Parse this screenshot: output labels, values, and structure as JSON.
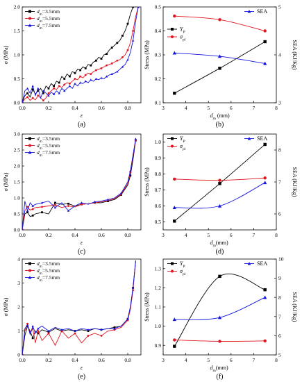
{
  "chart_data": [
    {
      "type": "line",
      "caption": "(a)",
      "xlabel": "ε",
      "ylabel": "σ (MPa)",
      "xlim": [
        0,
        0.9
      ],
      "ylim": [
        0,
        2.0
      ],
      "xticks": [
        0,
        0.2,
        0.4,
        0.6,
        0.8
      ],
      "xtick_labels": [
        "0.0",
        "0.2",
        "0.4",
        "0.6",
        "0.8"
      ],
      "yticks": [
        0,
        0.5,
        1.0,
        1.5,
        2.0
      ],
      "ytick_labels": [
        "0.0",
        "0.5",
        "1.0",
        "1.5",
        "2.0"
      ],
      "legend_position": "top-left",
      "series": [
        {
          "name": "dm=3.5mm",
          "label_main": "d",
          "label_sub": "m",
          "label_rest": "=3.5mm",
          "color": "#000000",
          "marker": "square",
          "x": [
            0,
            0.02,
            0.04,
            0.06,
            0.08,
            0.1,
            0.12,
            0.14,
            0.16,
            0.18,
            0.2,
            0.22,
            0.24,
            0.26,
            0.28,
            0.3,
            0.32,
            0.34,
            0.36,
            0.38,
            0.4,
            0.42,
            0.44,
            0.46,
            0.48,
            0.5,
            0.52,
            0.54,
            0.56,
            0.58,
            0.6,
            0.62,
            0.64,
            0.66,
            0.68,
            0.7,
            0.72,
            0.74,
            0.76,
            0.78,
            0.8,
            0.82,
            0.84,
            0.86
          ],
          "y": [
            0,
            0.15,
            0.2,
            0.12,
            0.28,
            0.18,
            0.25,
            0.3,
            0.2,
            0.35,
            0.3,
            0.4,
            0.35,
            0.45,
            0.42,
            0.55,
            0.5,
            0.6,
            0.55,
            0.65,
            0.62,
            0.7,
            0.68,
            0.75,
            0.72,
            0.8,
            0.78,
            0.85,
            0.88,
            0.95,
            0.92,
            1.0,
            1.02,
            1.1,
            1.15,
            1.2,
            1.25,
            1.3,
            1.4,
            1.5,
            1.65,
            1.85,
            2.0,
            2.0
          ]
        },
        {
          "name": "dm=5.5mm",
          "label_main": "d",
          "label_sub": "m",
          "label_rest": "=5.5mm",
          "color": "#e0141e",
          "marker": "circle",
          "x": [
            0,
            0.02,
            0.04,
            0.06,
            0.08,
            0.1,
            0.12,
            0.14,
            0.16,
            0.18,
            0.2,
            0.22,
            0.24,
            0.26,
            0.28,
            0.3,
            0.32,
            0.34,
            0.36,
            0.38,
            0.4,
            0.42,
            0.44,
            0.46,
            0.48,
            0.5,
            0.52,
            0.54,
            0.56,
            0.58,
            0.6,
            0.62,
            0.64,
            0.66,
            0.68,
            0.7,
            0.72,
            0.74,
            0.76,
            0.78,
            0.8,
            0.82,
            0.84,
            0.86,
            0.88
          ],
          "y": [
            0,
            0.08,
            0.12,
            0.05,
            0.1,
            0.06,
            0.15,
            0.1,
            0.05,
            0.1,
            0.2,
            0.25,
            0.3,
            0.28,
            0.35,
            0.32,
            0.38,
            0.42,
            0.4,
            0.45,
            0.5,
            0.48,
            0.55,
            0.52,
            0.58,
            0.62,
            0.6,
            0.65,
            0.68,
            0.7,
            0.72,
            0.75,
            0.78,
            0.8,
            0.82,
            0.85,
            0.88,
            0.9,
            0.95,
            1.0,
            1.1,
            1.25,
            1.5,
            1.8,
            2.0
          ]
        },
        {
          "name": "dm=7.5mm",
          "label_main": "d",
          "label_sub": "m",
          "label_rest": "=7.5mm",
          "color": "#1414e0",
          "marker": "triangle",
          "x": [
            0,
            0.02,
            0.04,
            0.06,
            0.08,
            0.1,
            0.12,
            0.14,
            0.16,
            0.18,
            0.2,
            0.22,
            0.24,
            0.26,
            0.28,
            0.3,
            0.32,
            0.34,
            0.36,
            0.38,
            0.4,
            0.42,
            0.44,
            0.46,
            0.48,
            0.5,
            0.52,
            0.54,
            0.56,
            0.58,
            0.6,
            0.62,
            0.64,
            0.66,
            0.68,
            0.7,
            0.72,
            0.74,
            0.76,
            0.78,
            0.8,
            0.82,
            0.84,
            0.86,
            0.88
          ],
          "y": [
            0,
            0.25,
            0.3,
            0.2,
            0.35,
            0.15,
            0.3,
            0.1,
            0.25,
            0.2,
            0.15,
            0.22,
            0.18,
            0.25,
            0.2,
            0.3,
            0.25,
            0.3,
            0.35,
            0.3,
            0.4,
            0.35,
            0.42,
            0.4,
            0.45,
            0.42,
            0.48,
            0.45,
            0.5,
            0.48,
            0.52,
            0.5,
            0.55,
            0.58,
            0.6,
            0.62,
            0.65,
            0.7,
            0.75,
            0.8,
            0.9,
            1.05,
            1.3,
            1.7,
            2.0
          ]
        }
      ]
    },
    {
      "type": "line",
      "caption": "(b)",
      "xlabel_main": "d",
      "xlabel_sub": "m",
      "xlabel_rest": " (mm)",
      "ylabel": "Stress (MPa)",
      "y2label": "SEA (KJ/Kg)",
      "xlim": [
        3,
        8
      ],
      "ylim": [
        0.1,
        0.5
      ],
      "y2lim": [
        3,
        5
      ],
      "xticks": [
        3,
        4,
        5,
        6,
        7,
        8
      ],
      "yticks": [
        0.1,
        0.2,
        0.3,
        0.4,
        0.5
      ],
      "ytick_labels": [
        "0.1",
        "0.2",
        "0.3",
        "0.4",
        "0.5"
      ],
      "y2ticks": [
        3,
        4,
        5
      ],
      "legend_position": "left",
      "legend2_position": "top-right",
      "series": [
        {
          "name": "YP",
          "label_main": "Y",
          "label_sub": "P",
          "color": "#000000",
          "marker": "square",
          "axis": "left",
          "x": [
            3.5,
            5.5,
            7.5
          ],
          "y": [
            0.14,
            0.244,
            0.355
          ]
        },
        {
          "name": "σpl",
          "label_main": "σ",
          "label_sub": "pl",
          "color": "#e0141e",
          "marker": "circle",
          "axis": "left",
          "x": [
            3.5,
            5.5,
            7.5
          ],
          "y": [
            0.462,
            0.447,
            0.4
          ]
        },
        {
          "name": "SEA",
          "label_main": "SEA",
          "label_sub": "",
          "color": "#1414e0",
          "marker": "triangle",
          "axis": "right",
          "x": [
            3.5,
            5.5,
            7.5
          ],
          "y": [
            4.04,
            3.97,
            3.82
          ]
        }
      ]
    },
    {
      "type": "line",
      "caption": "(c)",
      "xlabel": "ε",
      "ylabel": "σ (MPa)",
      "xlim": [
        0,
        0.9
      ],
      "ylim": [
        0,
        3.0
      ],
      "xticks": [
        0,
        0.2,
        0.4,
        0.6,
        0.8
      ],
      "xtick_labels": [
        "0.0",
        "0.2",
        "0.4",
        "0.6",
        "0.8"
      ],
      "yticks": [
        0,
        0.5,
        1.0,
        1.5,
        2.0,
        2.5,
        3.0
      ],
      "ytick_labels": [
        "0.0",
        "0.5",
        "1.0",
        "1.5",
        "2.0",
        "2.5",
        "3.0"
      ],
      "legend_position": "top-left",
      "series": [
        {
          "name": "dm=3.5mm",
          "label_main": "d",
          "label_sub": "m",
          "label_rest": "=3.5mm",
          "color": "#000000",
          "marker": "square",
          "x": [
            0,
            0.02,
            0.04,
            0.06,
            0.08,
            0.1,
            0.15,
            0.2,
            0.25,
            0.3,
            0.35,
            0.4,
            0.45,
            0.5,
            0.55,
            0.6,
            0.65,
            0.7,
            0.75,
            0.8,
            0.82,
            0.84,
            0.86
          ],
          "y": [
            0,
            0.5,
            0.55,
            0.42,
            0.45,
            0.5,
            0.55,
            0.5,
            0.85,
            0.8,
            0.82,
            0.75,
            0.8,
            0.82,
            0.85,
            0.85,
            0.9,
            0.95,
            1.1,
            1.4,
            1.7,
            2.2,
            2.8
          ]
        },
        {
          "name": "dm=5.5mm",
          "label_main": "d",
          "label_sub": "m",
          "label_rest": "=5.5mm",
          "color": "#e0141e",
          "marker": "circle",
          "x": [
            0,
            0.02,
            0.04,
            0.06,
            0.08,
            0.1,
            0.15,
            0.2,
            0.25,
            0.3,
            0.35,
            0.4,
            0.45,
            0.5,
            0.55,
            0.6,
            0.65,
            0.7,
            0.75,
            0.8,
            0.82,
            0.84,
            0.86
          ],
          "y": [
            0,
            0.6,
            0.72,
            0.62,
            0.65,
            0.7,
            0.72,
            0.75,
            0.78,
            0.7,
            0.75,
            0.72,
            0.8,
            0.82,
            0.85,
            0.88,
            0.92,
            0.98,
            1.12,
            1.45,
            1.8,
            2.3,
            2.8
          ]
        },
        {
          "name": "dm=7.5mm",
          "label_main": "d",
          "label_sub": "m",
          "label_rest": "=7.5mm",
          "color": "#1414e0",
          "marker": "triangle",
          "x": [
            0,
            0.02,
            0.04,
            0.06,
            0.08,
            0.1,
            0.15,
            0.2,
            0.25,
            0.3,
            0.35,
            0.4,
            0.45,
            0.5,
            0.55,
            0.6,
            0.65,
            0.7,
            0.75,
            0.8,
            0.82,
            0.84,
            0.86
          ],
          "y": [
            0,
            0.9,
            0.6,
            0.85,
            0.75,
            0.8,
            0.85,
            0.9,
            0.7,
            0.85,
            0.6,
            0.75,
            0.85,
            0.8,
            0.88,
            0.9,
            0.95,
            1.0,
            1.15,
            1.5,
            1.85,
            2.35,
            2.85
          ]
        }
      ]
    },
    {
      "type": "line",
      "caption": "(d)",
      "xlabel_main": "d",
      "xlabel_sub": "m",
      "xlabel_rest": "(mm)",
      "ylabel": "Stress (MPa)",
      "y2label": "SEA (KJ/Kg)",
      "xlim": [
        3,
        8
      ],
      "ylim": [
        0.45,
        1.05
      ],
      "y2lim": [
        5.5,
        8.5
      ],
      "xticks": [
        3,
        4,
        5,
        6,
        7,
        8
      ],
      "yticks": [
        0.5,
        0.6,
        0.7,
        0.8,
        0.9,
        1.0
      ],
      "ytick_labels": [
        "0.5",
        "0.6",
        "0.7",
        "0.8",
        "0.9",
        "1.0"
      ],
      "y2ticks": [
        6,
        7,
        8
      ],
      "legend_position": "top-left",
      "legend2_position": "top-right",
      "series": [
        {
          "name": "YP",
          "label_main": "Y",
          "label_sub": "P",
          "color": "#000000",
          "marker": "square",
          "axis": "left",
          "x": [
            3.5,
            5.5,
            7.5
          ],
          "y": [
            0.505,
            0.74,
            0.985
          ]
        },
        {
          "name": "σpl",
          "label_main": "σ",
          "label_sub": "pl",
          "color": "#e0141e",
          "marker": "circle",
          "axis": "left",
          "x": [
            3.5,
            5.5,
            7.5
          ],
          "y": [
            0.768,
            0.76,
            0.775
          ]
        },
        {
          "name": "SEA",
          "label_main": "SEA",
          "label_sub": "",
          "color": "#1414e0",
          "marker": "triangle",
          "axis": "right",
          "x": [
            3.5,
            5.5,
            7.5
          ],
          "y": [
            6.2,
            6.25,
            6.98
          ]
        }
      ]
    },
    {
      "type": "line",
      "caption": "(e)",
      "xlabel": "ε",
      "ylabel": "σ (MPa)",
      "xlim": [
        0,
        0.9
      ],
      "ylim": [
        0,
        4
      ],
      "xticks": [
        0,
        0.2,
        0.4,
        0.6,
        0.8
      ],
      "xtick_labels": [
        "0.0",
        "0.2",
        "0.4",
        "0.6",
        "0.8"
      ],
      "yticks": [
        0,
        1,
        2,
        3,
        4
      ],
      "ytick_labels": [
        "0",
        "1",
        "2",
        "3",
        "4"
      ],
      "legend_position": "top-left",
      "series": [
        {
          "name": "dm=3.5mm",
          "label_main": "d",
          "label_sub": "m",
          "label_rest": "=3.5mm",
          "color": "#000000",
          "marker": "square",
          "x": [
            0,
            0.02,
            0.04,
            0.06,
            0.08,
            0.1,
            0.12,
            0.15,
            0.2,
            0.25,
            0.3,
            0.35,
            0.4,
            0.45,
            0.5,
            0.55,
            0.6,
            0.65,
            0.7,
            0.75,
            0.8,
            0.82,
            0.84,
            0.86
          ],
          "y": [
            0,
            0.8,
            1.2,
            1.0,
            0.7,
            1.0,
            0.9,
            1.05,
            0.95,
            1.1,
            1.0,
            1.05,
            1.0,
            1.05,
            1.0,
            1.1,
            1.05,
            1.1,
            1.15,
            1.2,
            1.5,
            2.0,
            2.8,
            3.9
          ]
        },
        {
          "name": "dm=5.5mm",
          "label_main": "d",
          "label_sub": "m",
          "label_rest": "=5.5mm",
          "color": "#e0141e",
          "marker": "circle",
          "x": [
            0,
            0.02,
            0.04,
            0.06,
            0.08,
            0.1,
            0.12,
            0.15,
            0.2,
            0.25,
            0.3,
            0.35,
            0.4,
            0.45,
            0.5,
            0.55,
            0.6,
            0.65,
            0.7,
            0.75,
            0.8,
            0.82,
            0.84,
            0.86
          ],
          "y": [
            0,
            1.0,
            1.3,
            0.9,
            1.1,
            0.5,
            1.0,
            0.6,
            0.9,
            0.4,
            1.0,
            0.7,
            0.9,
            0.5,
            0.8,
            0.9,
            0.8,
            1.0,
            1.05,
            1.15,
            1.45,
            1.9,
            2.7,
            3.9
          ]
        },
        {
          "name": "dm=7.5mm",
          "label_main": "d",
          "label_sub": "m",
          "label_rest": "=7.5mm",
          "color": "#1414e0",
          "marker": "triangle",
          "x": [
            0,
            0.02,
            0.04,
            0.06,
            0.08,
            0.1,
            0.12,
            0.15,
            0.2,
            0.25,
            0.3,
            0.35,
            0.4,
            0.45,
            0.5,
            0.55,
            0.6,
            0.65,
            0.7,
            0.75,
            0.8,
            0.82,
            0.84,
            0.86
          ],
          "y": [
            0,
            1.1,
            1.25,
            0.85,
            1.2,
            0.9,
            1.1,
            1.2,
            1.0,
            1.15,
            1.05,
            1.1,
            1.0,
            1.1,
            1.05,
            1.1,
            1.05,
            1.1,
            1.1,
            1.2,
            1.5,
            2.0,
            2.8,
            3.95
          ]
        }
      ]
    },
    {
      "type": "line",
      "caption": "(f)",
      "xlabel_main": "d",
      "xlabel_sub": "m",
      "xlabel_rest": "(mm)",
      "ylabel": "Stress (MPa)",
      "y2label": "SEA (KJ/Kg)",
      "xlim": [
        3,
        8
      ],
      "ylim": [
        0.85,
        1.35
      ],
      "y2lim": [
        5,
        10
      ],
      "xticks": [
        3,
        4,
        5,
        6,
        7,
        8
      ],
      "yticks": [
        0.9,
        1.0,
        1.1,
        1.2,
        1.3
      ],
      "ytick_labels": [
        "0.9",
        "1.0",
        "1.1",
        "1.2",
        "1.3"
      ],
      "y2ticks": [
        5,
        6,
        7,
        8,
        9,
        10
      ],
      "legend_position": "top-left",
      "legend2_position": "top-right",
      "series": [
        {
          "name": "YP",
          "label_main": "Y",
          "label_sub": "P",
          "color": "#000000",
          "marker": "square",
          "axis": "left",
          "x": [
            3.5,
            5.5,
            7.5
          ],
          "y": [
            0.895,
            1.26,
            1.19
          ]
        },
        {
          "name": "σpl",
          "label_main": "σ",
          "label_sub": "pl",
          "color": "#e0141e",
          "marker": "circle",
          "axis": "left",
          "x": [
            3.5,
            5.5,
            7.5
          ],
          "y": [
            0.928,
            0.921,
            0.923
          ]
        },
        {
          "name": "SEA",
          "label_main": "SEA",
          "label_sub": "",
          "color": "#1414e0",
          "marker": "triangle",
          "axis": "right",
          "x": [
            3.5,
            5.5,
            7.5
          ],
          "y": [
            6.85,
            6.95,
            8.0
          ]
        }
      ]
    }
  ]
}
